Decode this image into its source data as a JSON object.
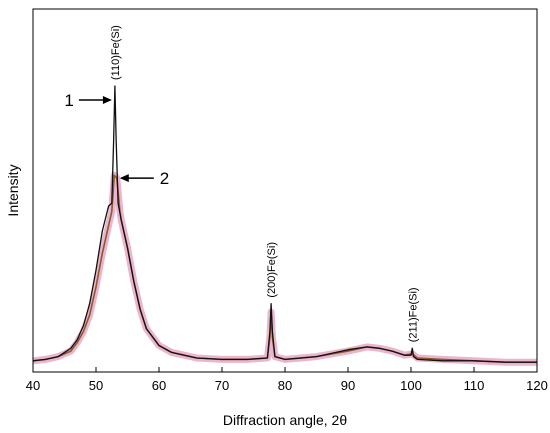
{
  "chart_data": {
    "type": "line",
    "title": "",
    "xlabel": "Diffraction angle, 2θ",
    "ylabel": "Intensity",
    "xlim": [
      40,
      120
    ],
    "ylim": [
      0,
      100
    ],
    "xticks": [
      40,
      50,
      60,
      70,
      80,
      90,
      100,
      110,
      120
    ],
    "grid": false,
    "legend": "none",
    "colors": {
      "series1": "#111111",
      "series2": "#8a5a2b",
      "series2_halo": "#e8a8c8"
    },
    "series": [
      {
        "name": "1",
        "x": [
          40,
          42,
          44,
          46,
          47,
          48,
          49,
          50,
          51,
          52,
          52.5,
          52.8,
          53.0,
          53.2,
          53.5,
          54,
          55,
          56,
          57,
          58,
          60,
          62,
          64,
          66,
          70,
          74,
          77.2,
          77.6,
          77.8,
          78.0,
          78.4,
          80,
          85,
          90,
          93,
          95,
          97,
          99,
          100.0,
          100.2,
          100.4,
          101,
          105,
          110,
          115,
          120
        ],
        "y": [
          1.5,
          2,
          3,
          6,
          9,
          14,
          22,
          34,
          48,
          57,
          58,
          80,
          100,
          80,
          58,
          52,
          42,
          30,
          20,
          13,
          7,
          4.5,
          3.5,
          2.5,
          2,
          2,
          2.5,
          12,
          22,
          12,
          3,
          2,
          3,
          5.5,
          6.5,
          6,
          5,
          3.5,
          3.5,
          6,
          3,
          2,
          1.5,
          1.5,
          1,
          1
        ]
      },
      {
        "name": "2",
        "x": [
          40,
          42,
          44,
          46,
          47,
          48,
          49,
          50,
          51,
          52,
          52.5,
          52.9,
          53.3,
          53.8,
          54,
          55,
          56,
          57,
          58,
          60,
          62,
          64,
          66,
          70,
          74,
          77.2,
          77.6,
          77.8,
          78.0,
          78.4,
          80,
          85,
          90,
          93,
          95,
          97,
          99,
          100.2,
          101,
          105,
          110,
          115,
          120
        ],
        "y": [
          1.5,
          2,
          3,
          5,
          8,
          12,
          18,
          28,
          40,
          50,
          55,
          68,
          67,
          55,
          52,
          42,
          30,
          20,
          13,
          7,
          4.5,
          3.5,
          2.5,
          2,
          2,
          2.5,
          10,
          19,
          10,
          3,
          2,
          3,
          5,
          6.5,
          6,
          5,
          3.5,
          4,
          2.5,
          2,
          1.5,
          1,
          1
        ]
      }
    ],
    "annotations": [
      {
        "text": "(110)Fe(Si)",
        "x": 53.0,
        "y": 100
      },
      {
        "text": "(200)Fe(Si)",
        "x": 77.8,
        "y": 22
      },
      {
        "text": "(211)Fe(Si)",
        "x": 100.2,
        "y": 6
      }
    ],
    "markers": [
      {
        "label": "1",
        "x": 53.0,
        "y": 95,
        "side": "left"
      },
      {
        "label": "2",
        "x": 53.3,
        "y": 67,
        "side": "right"
      }
    ]
  }
}
